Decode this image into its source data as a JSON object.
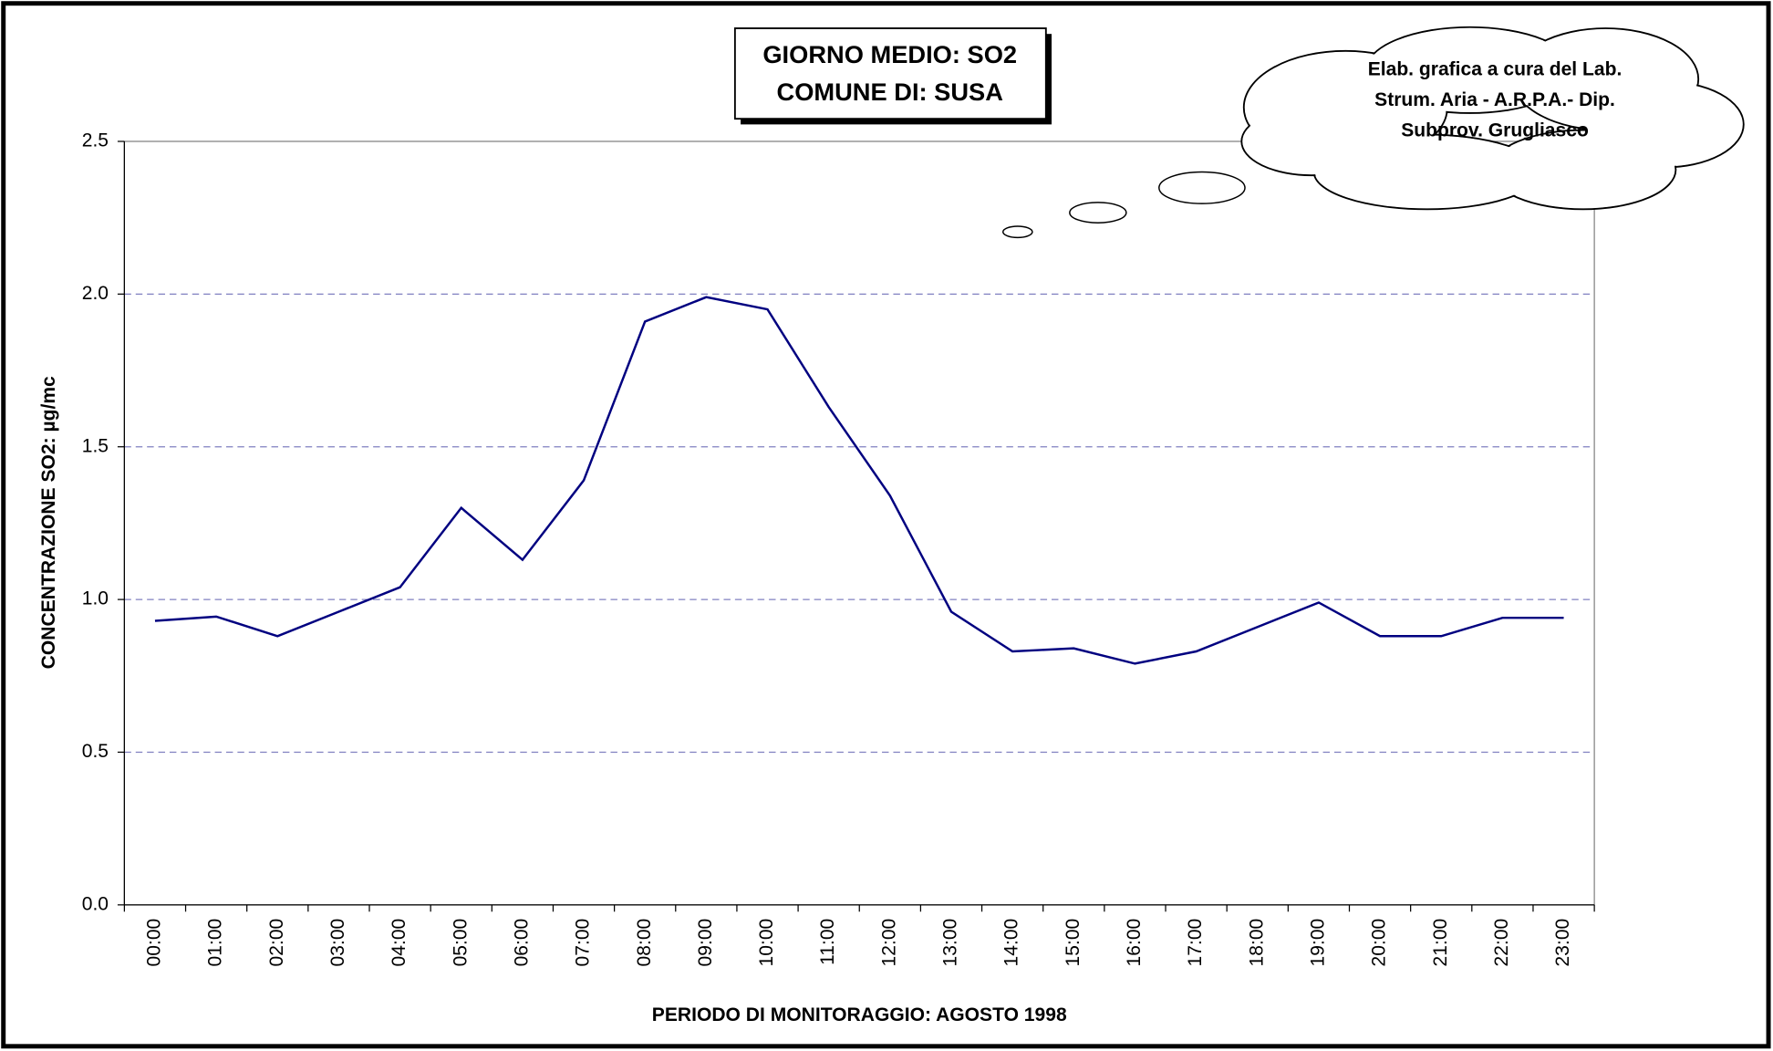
{
  "chart_data": {
    "type": "line",
    "title": "GIORNO MEDIO: SO2",
    "subtitle": "COMUNE DI: SUSA",
    "annotation": [
      "Elab. grafica a cura del Lab.",
      "Strum. Aria - A.R.P.A.- Dip.",
      "Subprov. Grugliasco"
    ],
    "x_label": "PERIODO DI MONITORAGGIO: AGOSTO 1998",
    "y_label": "CONCENTRAZIONE SO2: µg/mc",
    "categories": [
      "00:00",
      "01:00",
      "02:00",
      "03:00",
      "04:00",
      "05:00",
      "06:00",
      "07:00",
      "08:00",
      "09:00",
      "10:00",
      "11:00",
      "12:00",
      "13:00",
      "14:00",
      "15:00",
      "16:00",
      "17:00",
      "18:00",
      "19:00",
      "20:00",
      "21:00",
      "22:00",
      "23:00"
    ],
    "series": [
      {
        "color": "#000080",
        "values": [
          0.93,
          0.944,
          0.88,
          0.96,
          1.04,
          1.3,
          1.13,
          1.39,
          1.91,
          1.99,
          1.95,
          1.63,
          1.34,
          0.96,
          0.83,
          0.84,
          0.79,
          0.83,
          0.91,
          0.99,
          0.88,
          0.88,
          0.94,
          0.94
        ]
      }
    ],
    "ylim": [
      0,
      2.5
    ],
    "yticks": [
      {
        "value": 0,
        "label": "0.0"
      },
      0.5,
      {
        "value": 1,
        "label": "1.0"
      },
      1.5,
      {
        "value": 2,
        "label": "2.0"
      },
      2.5
    ],
    "grid": true
  }
}
